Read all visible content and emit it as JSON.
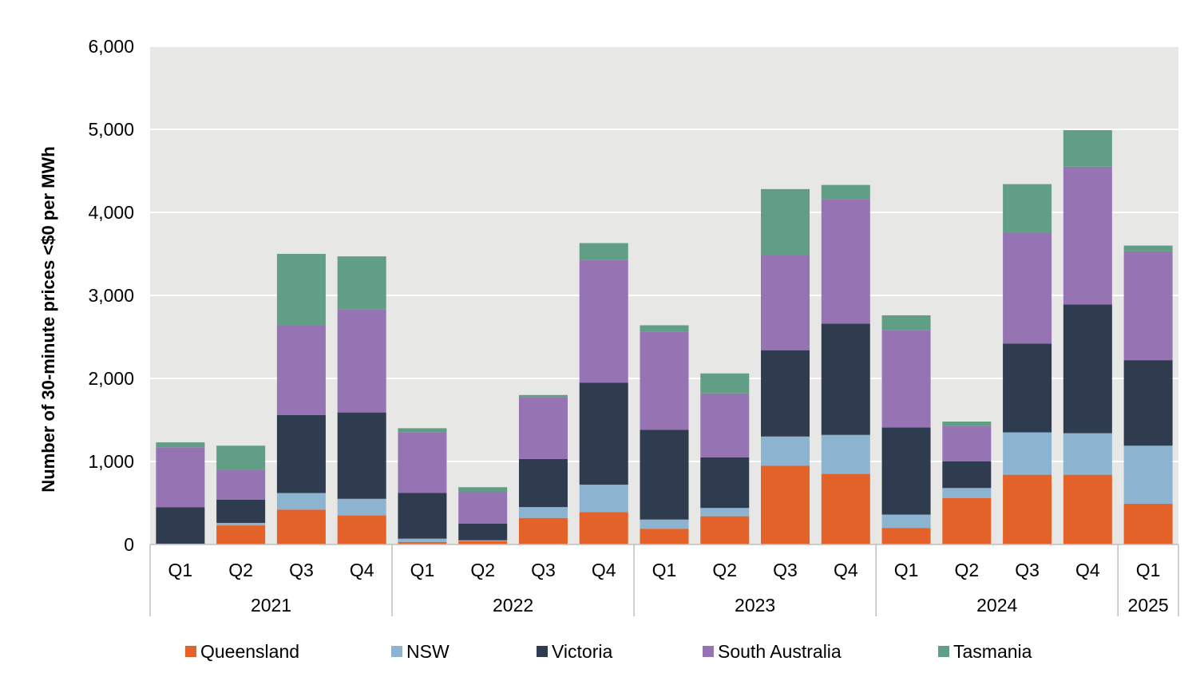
{
  "chart_data": {
    "type": "bar",
    "stacked": true,
    "title": "",
    "ylabel": "Number of 30-minute prices <$0 per MWh",
    "ylim": [
      0,
      6000
    ],
    "yticks": [
      0,
      1000,
      2000,
      3000,
      4000,
      5000,
      6000
    ],
    "ytick_labels": [
      "0",
      "1,000",
      "2,000",
      "3,000",
      "4,000",
      "5,000",
      "6,000"
    ],
    "grid": true,
    "legend_position": "bottom",
    "categories": [
      "Q1",
      "Q2",
      "Q3",
      "Q4",
      "Q1",
      "Q2",
      "Q3",
      "Q4",
      "Q1",
      "Q2",
      "Q3",
      "Q4",
      "Q1",
      "Q2",
      "Q3",
      "Q4",
      "Q1"
    ],
    "groups": [
      {
        "label": "2021",
        "count": 4
      },
      {
        "label": "2022",
        "count": 4
      },
      {
        "label": "2023",
        "count": 4
      },
      {
        "label": "2024",
        "count": 4
      },
      {
        "label": "2025",
        "count": 1
      }
    ],
    "series": [
      {
        "name": "Queensland",
        "color": "#e2622a",
        "values": [
          5,
          230,
          420,
          350,
          30,
          40,
          320,
          390,
          190,
          340,
          950,
          850,
          200,
          560,
          840,
          840,
          490
        ]
      },
      {
        "name": "NSW",
        "color": "#8cb3d0",
        "values": [
          5,
          30,
          200,
          200,
          40,
          10,
          130,
          330,
          110,
          100,
          350,
          470,
          160,
          120,
          510,
          500,
          700
        ]
      },
      {
        "name": "Victoria",
        "color": "#2f3c4f",
        "values": [
          440,
          280,
          940,
          1040,
          550,
          200,
          580,
          1230,
          1080,
          610,
          1040,
          1340,
          1050,
          320,
          1070,
          1550,
          1030
        ]
      },
      {
        "name": "South Australia",
        "color": "#9673b3",
        "values": [
          720,
          360,
          1080,
          1240,
          730,
          380,
          740,
          1480,
          1180,
          770,
          1150,
          1500,
          1170,
          430,
          1330,
          1660,
          1310
        ]
      },
      {
        "name": "Tasmania",
        "color": "#609e85",
        "values": [
          60,
          290,
          860,
          640,
          50,
          60,
          30,
          200,
          80,
          240,
          790,
          170,
          180,
          50,
          590,
          440,
          70
        ]
      }
    ]
  }
}
